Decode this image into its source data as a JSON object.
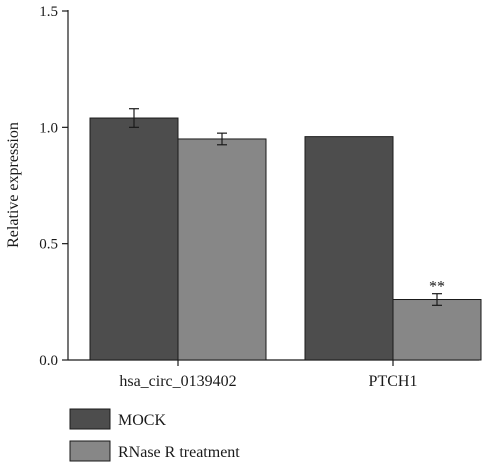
{
  "chart_data": {
    "type": "bar",
    "title": "",
    "xlabel": "",
    "ylabel": "Relative expression",
    "ylim": [
      0,
      1.5
    ],
    "yticks": [
      "0.0",
      "0.5",
      "1.0",
      "1.5"
    ],
    "categories": [
      "hsa_circ_0139402",
      "PTCH1"
    ],
    "series": [
      {
        "name": "MOCK",
        "color": "#4d4d4d",
        "values": [
          1.04,
          0.96
        ],
        "errors": [
          0.04,
          null
        ]
      },
      {
        "name": "RNase R treatment",
        "color": "#878787",
        "values": [
          0.95,
          0.26
        ],
        "errors": [
          0.025,
          0.025
        ]
      }
    ],
    "annotations": [
      {
        "category": "PTCH1",
        "series": "RNase R treatment",
        "text": "**"
      }
    ],
    "legend": "bottom-left",
    "grid": false
  }
}
